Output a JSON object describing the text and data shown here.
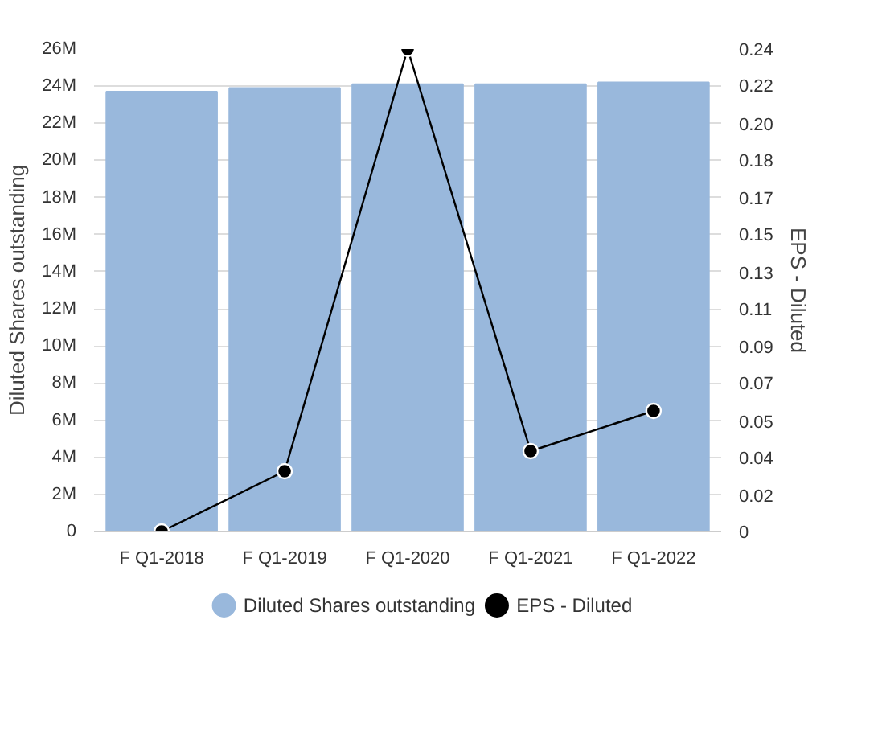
{
  "chart_data": {
    "type": "bar",
    "categories": [
      "F Q1-2018",
      "F Q1-2019",
      "F Q1-2020",
      "F Q1-2021",
      "F Q1-2022"
    ],
    "ylabel": "Diluted Shares outstanding",
    "y2label": "EPS - Diluted",
    "ylim": [
      0,
      26000000
    ],
    "yticks": [
      {
        "value": 0,
        "label": "0"
      },
      {
        "value": 2000000,
        "label": "2M"
      },
      {
        "value": 4000000,
        "label": "4M"
      },
      {
        "value": 6000000,
        "label": "6M"
      },
      {
        "value": 8000000,
        "label": "8M"
      },
      {
        "value": 10000000,
        "label": "10M"
      },
      {
        "value": 12000000,
        "label": "12M"
      },
      {
        "value": 14000000,
        "label": "14M"
      },
      {
        "value": 16000000,
        "label": "16M"
      },
      {
        "value": 18000000,
        "label": "18M"
      },
      {
        "value": 20000000,
        "label": "20M"
      },
      {
        "value": 22000000,
        "label": "22M"
      },
      {
        "value": 24000000,
        "label": "24M"
      },
      {
        "value": 26000000,
        "label": "26M"
      }
    ],
    "y2lim": [
      0,
      0.24
    ],
    "y2ticks": [
      0,
      {
        "value": 0.018,
        "label": "0.02"
      },
      {
        "value": 0.037,
        "label": "0.04"
      },
      {
        "value": 0.055,
        "label": "0.05"
      },
      {
        "value": 0.074,
        "label": "0.07"
      },
      {
        "value": 0.092,
        "label": "0.09"
      },
      {
        "value": 0.111,
        "label": "0.11"
      },
      {
        "value": 0.129,
        "label": "0.13"
      },
      {
        "value": 0.148,
        "label": "0.15"
      },
      {
        "value": 0.166,
        "label": "0.17"
      },
      {
        "value": 0.185,
        "label": "0.18"
      },
      {
        "value": 0.203,
        "label": "0.20"
      },
      {
        "value": 0.222,
        "label": "0.22"
      },
      0.24
    ],
    "grid": "y",
    "legend": "bottom",
    "series": [
      {
        "name": "Diluted Shares outstanding",
        "color": "#99b8dc",
        "values": [
          23700000,
          23900000,
          24100000,
          24100000,
          24200000
        ]
      },
      {
        "name": "EPS - Diluted",
        "type": "line",
        "axis": "y2",
        "color": "#000000",
        "marker": "circle",
        "line_style": "solid",
        "values": [
          0,
          0.03,
          0.24,
          0.04,
          0.06
        ]
      }
    ]
  }
}
